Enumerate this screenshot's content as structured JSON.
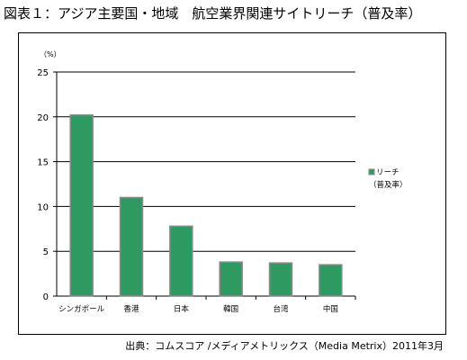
{
  "title": "図表１：アジア主要国・地域　航空業界関連サイトリーチ（普及率）",
  "source": "出典：コムスコア /メディアメトリックス（Media Metrix）2011年3月",
  "colors": {
    "bar_fill": "#2e9a62",
    "bar_edge": "#8a8a8a",
    "gridline": "#000000",
    "axis": "#000000"
  },
  "chart_data": {
    "type": "bar",
    "title": "",
    "unit_label": "（%）",
    "xlabel": "",
    "ylabel": "",
    "ylim": [
      0,
      25
    ],
    "yticks": [
      0,
      5,
      10,
      15,
      20,
      25
    ],
    "grid": true,
    "legend_position": "right",
    "categories": [
      "シンガポール",
      "香港",
      "日本",
      "韓国",
      "台湾",
      "中国"
    ],
    "series": [
      {
        "name": "リーチ（普及率）",
        "legend_line1": "リーチ",
        "legend_line2": "（普及率）",
        "values": [
          20.2,
          11.0,
          7.8,
          3.8,
          3.7,
          3.5
        ]
      }
    ]
  }
}
